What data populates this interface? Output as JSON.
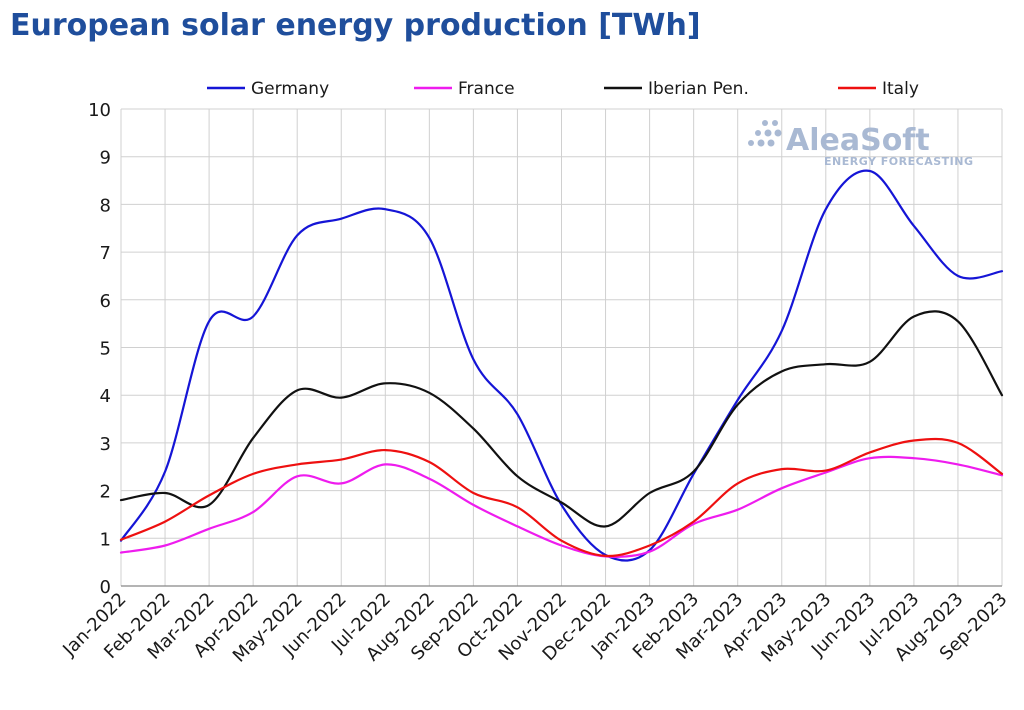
{
  "title": "European solar energy production [TWh]",
  "watermark": {
    "brand": "AleaSoft",
    "tagline": "ENERGY FORECASTING"
  },
  "chart_data": {
    "type": "line",
    "title": "European solar energy production [TWh]",
    "xlabel": "",
    "ylabel": "",
    "ylim": [
      0,
      10
    ],
    "yticks": [
      "0",
      "1",
      "2",
      "3",
      "4",
      "5",
      "6",
      "7",
      "8",
      "9",
      "10"
    ],
    "grid": true,
    "legend_position": "top",
    "categories": [
      "Jan-2022",
      "Feb-2022",
      "Mar-2022",
      "Apr-2022",
      "May-2022",
      "Jun-2022",
      "Jul-2022",
      "Aug-2022",
      "Sep-2022",
      "Oct-2022",
      "Nov-2022",
      "Dec-2022",
      "Jan-2023",
      "Feb-2023",
      "Mar-2023",
      "Apr-2023",
      "May-2023",
      "Jun-2023",
      "Jul-2023",
      "Aug-2023",
      "Sep-2023"
    ],
    "series": [
      {
        "name": "Germany",
        "color": "#1515d6",
        "values": [
          0.95,
          2.4,
          5.55,
          5.65,
          7.35,
          7.7,
          7.9,
          7.3,
          4.75,
          3.6,
          1.7,
          0.65,
          0.75,
          2.35,
          3.9,
          5.35,
          7.9,
          8.7,
          7.55,
          6.5,
          6.6
        ]
      },
      {
        "name": "France",
        "color": "#ee1cee",
        "values": [
          0.7,
          0.85,
          1.2,
          1.55,
          2.3,
          2.15,
          2.55,
          2.25,
          1.7,
          1.25,
          0.85,
          0.62,
          0.72,
          1.3,
          1.6,
          2.05,
          2.38,
          2.68,
          2.68,
          2.55,
          2.32
        ]
      },
      {
        "name": "Iberian Pen.",
        "color": "#111111",
        "values": [
          1.8,
          1.95,
          1.7,
          3.1,
          4.1,
          3.95,
          4.25,
          4.05,
          3.3,
          2.3,
          1.75,
          1.25,
          1.95,
          2.4,
          3.8,
          4.5,
          4.65,
          4.7,
          5.65,
          5.55,
          4.0
        ]
      },
      {
        "name": "Italy",
        "color": "#ee1010",
        "values": [
          0.97,
          1.35,
          1.9,
          2.35,
          2.55,
          2.65,
          2.85,
          2.6,
          1.95,
          1.65,
          0.95,
          0.63,
          0.85,
          1.35,
          2.15,
          2.45,
          2.42,
          2.8,
          3.05,
          3.0,
          2.35
        ]
      }
    ]
  }
}
